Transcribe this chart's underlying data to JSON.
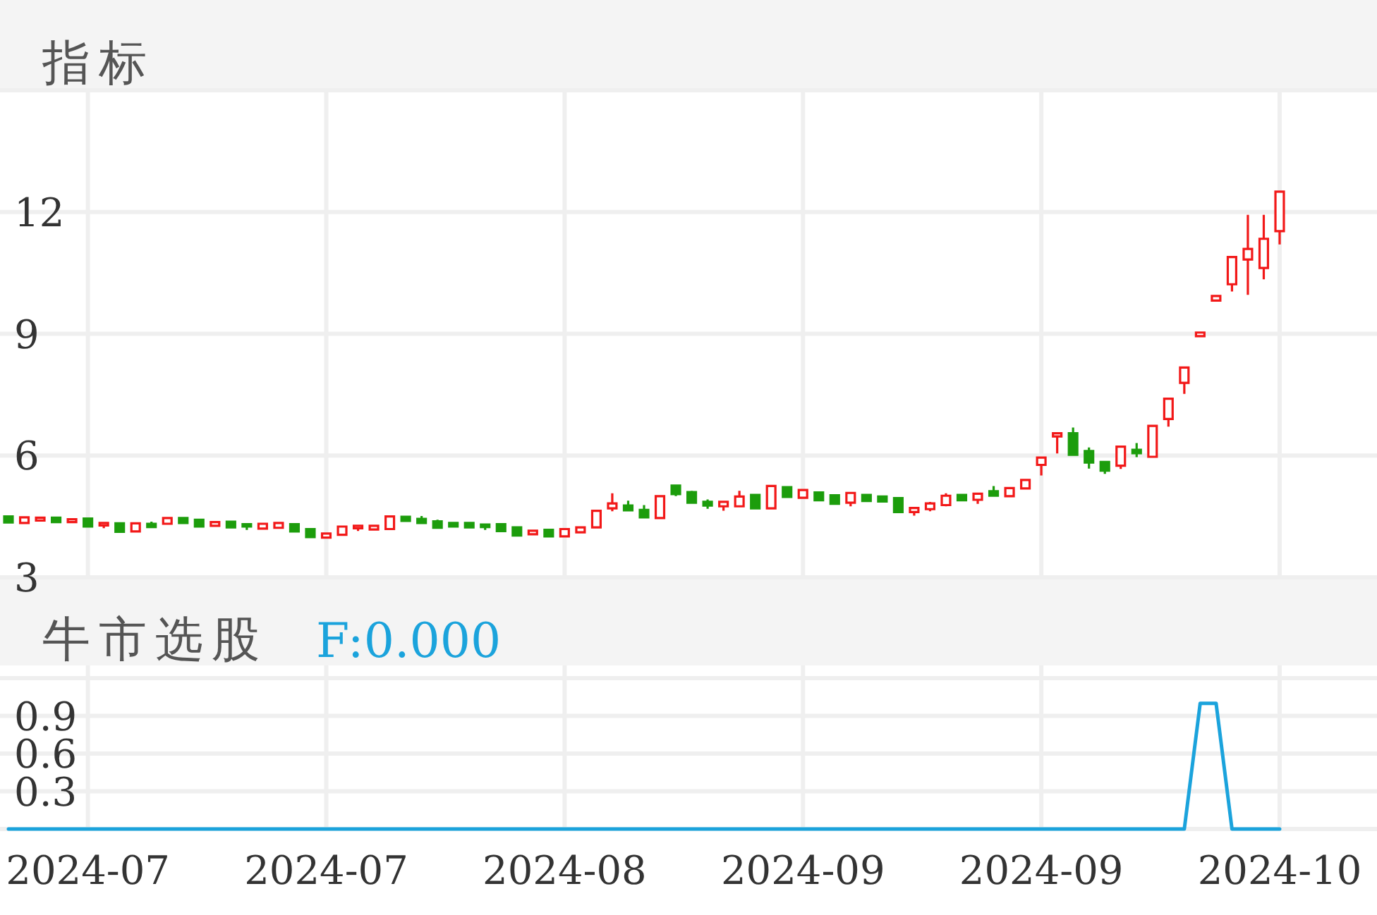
{
  "chart_data": [
    {
      "type": "candlestick",
      "title": "指标",
      "categories": [
        null,
        null,
        null,
        null,
        null,
        "2024-07",
        null,
        null,
        null,
        null,
        null,
        null,
        null,
        null,
        null,
        null,
        null,
        null,
        null,
        null,
        "2024-07",
        null,
        null,
        null,
        null,
        null,
        null,
        null,
        null,
        null,
        null,
        null,
        null,
        null,
        null,
        "2024-08",
        null,
        null,
        null,
        null,
        null,
        null,
        null,
        null,
        null,
        null,
        null,
        null,
        null,
        null,
        "2024-09",
        null,
        null,
        null,
        null,
        null,
        null,
        null,
        null,
        null,
        null,
        null,
        null,
        null,
        null,
        "2024-09",
        null,
        null,
        null,
        null,
        null,
        null,
        null,
        null,
        null,
        null,
        null,
        null,
        null,
        null,
        "2024-10"
      ],
      "ohlc": [
        [
          4.5,
          4.52,
          4.33,
          4.35
        ],
        [
          4.34,
          4.5,
          4.33,
          4.48
        ],
        [
          4.4,
          4.48,
          4.4,
          4.47
        ],
        [
          4.47,
          4.48,
          4.35,
          4.36
        ],
        [
          4.36,
          4.44,
          4.36,
          4.43
        ],
        [
          4.45,
          4.45,
          4.24,
          4.25
        ],
        [
          4.28,
          4.35,
          4.21,
          4.34
        ],
        [
          4.33,
          4.33,
          4.12,
          4.12
        ],
        [
          4.13,
          4.34,
          4.12,
          4.33
        ],
        [
          4.32,
          4.37,
          4.23,
          4.24
        ],
        [
          4.32,
          4.47,
          4.31,
          4.46
        ],
        [
          4.46,
          4.47,
          4.33,
          4.34
        ],
        [
          4.42,
          4.43,
          4.24,
          4.25
        ],
        [
          4.27,
          4.37,
          4.26,
          4.36
        ],
        [
          4.37,
          4.38,
          4.22,
          4.23
        ],
        [
          4.31,
          4.31,
          4.17,
          4.25
        ],
        [
          4.2,
          4.33,
          4.19,
          4.32
        ],
        [
          4.22,
          4.35,
          4.21,
          4.34
        ],
        [
          4.31,
          4.31,
          4.12,
          4.13
        ],
        [
          4.19,
          4.2,
          3.98,
          3.99
        ],
        [
          3.98,
          4.09,
          3.98,
          4.08
        ],
        [
          4.05,
          4.26,
          4.05,
          4.25
        ],
        [
          4.21,
          4.28,
          4.14,
          4.27
        ],
        [
          4.18,
          4.28,
          4.17,
          4.27
        ],
        [
          4.19,
          4.51,
          4.19,
          4.5
        ],
        [
          4.49,
          4.5,
          4.38,
          4.39
        ],
        [
          4.44,
          4.51,
          4.33,
          4.34
        ],
        [
          4.38,
          4.42,
          4.21,
          4.22
        ],
        [
          4.34,
          4.35,
          4.24,
          4.25
        ],
        [
          4.34,
          4.34,
          4.22,
          4.23
        ],
        [
          4.3,
          4.3,
          4.17,
          4.24
        ],
        [
          4.31,
          4.31,
          4.13,
          4.14
        ],
        [
          4.23,
          4.23,
          4.02,
          4.03
        ],
        [
          4.06,
          4.16,
          4.05,
          4.15
        ],
        [
          4.17,
          4.17,
          4.0,
          4.01
        ],
        [
          4.01,
          4.2,
          4.0,
          4.19
        ],
        [
          4.11,
          4.24,
          4.1,
          4.23
        ],
        [
          4.23,
          4.65,
          4.22,
          4.64
        ],
        [
          4.7,
          5.07,
          4.63,
          4.82
        ],
        [
          4.77,
          4.89,
          4.64,
          4.65
        ],
        [
          4.66,
          4.78,
          4.47,
          4.48
        ],
        [
          4.46,
          5.01,
          4.45,
          5.0
        ],
        [
          5.26,
          5.26,
          5.0,
          5.05
        ],
        [
          5.1,
          5.13,
          4.83,
          4.84
        ],
        [
          4.86,
          4.92,
          4.69,
          4.77
        ],
        [
          4.75,
          4.87,
          4.64,
          4.86
        ],
        [
          4.75,
          5.13,
          4.74,
          4.99
        ],
        [
          5.03,
          5.04,
          4.69,
          4.7
        ],
        [
          4.7,
          5.26,
          4.69,
          5.25
        ],
        [
          5.22,
          5.23,
          4.97,
          4.98
        ],
        [
          4.96,
          5.16,
          4.95,
          5.15
        ],
        [
          5.09,
          5.09,
          4.89,
          4.9
        ],
        [
          5.02,
          5.02,
          4.8,
          4.81
        ],
        [
          4.84,
          5.09,
          4.75,
          5.08
        ],
        [
          5.03,
          5.03,
          4.87,
          4.88
        ],
        [
          4.99,
          5.0,
          4.86,
          4.87
        ],
        [
          4.95,
          4.95,
          4.6,
          4.61
        ],
        [
          4.61,
          4.72,
          4.52,
          4.71
        ],
        [
          4.68,
          4.86,
          4.63,
          4.82
        ],
        [
          4.78,
          5.07,
          4.75,
          5.01
        ],
        [
          5.03,
          5.04,
          4.89,
          4.9
        ],
        [
          4.91,
          5.07,
          4.81,
          5.06
        ],
        [
          5.12,
          5.25,
          5.0,
          5.01
        ],
        [
          5.0,
          5.21,
          4.99,
          5.2
        ],
        [
          5.19,
          5.41,
          5.18,
          5.4
        ],
        [
          5.77,
          5.96,
          5.51,
          5.95
        ],
        [
          6.47,
          6.55,
          6.05,
          6.55
        ],
        [
          6.55,
          6.69,
          6.01,
          6.02
        ],
        [
          6.11,
          6.2,
          5.68,
          5.83
        ],
        [
          5.84,
          5.84,
          5.55,
          5.63
        ],
        [
          5.75,
          6.22,
          5.67,
          6.22
        ],
        [
          6.14,
          6.31,
          5.96,
          6.06
        ],
        [
          5.97,
          6.74,
          5.96,
          6.73
        ],
        [
          6.9,
          7.41,
          6.71,
          7.4
        ],
        [
          7.79,
          8.17,
          7.52,
          8.17
        ],
        [
          8.94,
          9.03,
          8.94,
          9.03
        ],
        [
          9.82,
          9.93,
          9.82,
          9.93
        ],
        [
          10.22,
          10.91,
          10.04,
          10.89
        ],
        [
          10.83,
          11.93,
          9.96,
          11.09
        ],
        [
          10.62,
          11.93,
          10.34,
          11.34
        ],
        [
          11.53,
          12.5,
          11.2,
          12.5
        ]
      ],
      "colors": [
        "#1c9d0c",
        "#f21818",
        "#f21818",
        "#1c9d0c",
        "#f21818",
        "#1c9d0c",
        "#f21818",
        "#1c9d0c",
        "#f21818",
        "#1c9d0c",
        "#f21818",
        "#1c9d0c",
        "#1c9d0c",
        "#f21818",
        "#1c9d0c",
        "#1c9d0c",
        "#f21818",
        "#f21818",
        "#1c9d0c",
        "#1c9d0c",
        "#f21818",
        "#f21818",
        "#f21818",
        "#f21818",
        "#f21818",
        "#1c9d0c",
        "#1c9d0c",
        "#1c9d0c",
        "#1c9d0c",
        "#1c9d0c",
        "#1c9d0c",
        "#1c9d0c",
        "#1c9d0c",
        "#f21818",
        "#1c9d0c",
        "#f21818",
        "#f21818",
        "#f21818",
        "#f21818",
        "#1c9d0c",
        "#1c9d0c",
        "#f21818",
        "#1c9d0c",
        "#1c9d0c",
        "#1c9d0c",
        "#f21818",
        "#f21818",
        "#1c9d0c",
        "#f21818",
        "#1c9d0c",
        "#f21818",
        "#1c9d0c",
        "#1c9d0c",
        "#f21818",
        "#1c9d0c",
        "#1c9d0c",
        "#1c9d0c",
        "#f21818",
        "#f21818",
        "#f21818",
        "#1c9d0c",
        "#f21818",
        "#1c9d0c",
        "#f21818",
        "#f21818",
        "#f21818",
        "#f21818",
        "#1c9d0c",
        "#1c9d0c",
        "#1c9d0c",
        "#f21818",
        "#1c9d0c",
        "#f21818",
        "#f21818",
        "#f21818",
        "#f21818",
        "#f21818",
        "#f21818",
        "#f21818",
        "#f21818",
        "#f21818"
      ],
      "ylim": [
        3,
        15
      ],
      "yticks": [
        3,
        6,
        9,
        12,
        {
          "value": 15,
          "label": null
        }
      ],
      "grid": true,
      "tick_labels": "y"
    },
    {
      "type": "line",
      "title": "牛市选股",
      "categories": [
        null,
        null,
        null,
        null,
        null,
        "2024-07",
        null,
        null,
        null,
        null,
        null,
        null,
        null,
        null,
        null,
        null,
        null,
        null,
        null,
        null,
        "2024-07",
        null,
        null,
        null,
        null,
        null,
        null,
        null,
        null,
        null,
        null,
        null,
        null,
        null,
        null,
        "2024-08",
        null,
        null,
        null,
        null,
        null,
        null,
        null,
        null,
        null,
        null,
        null,
        null,
        null,
        null,
        "2024-09",
        null,
        null,
        null,
        null,
        null,
        null,
        null,
        null,
        null,
        null,
        null,
        null,
        null,
        null,
        "2024-09",
        null,
        null,
        null,
        null,
        null,
        null,
        null,
        null,
        null,
        null,
        null,
        null,
        null,
        null,
        "2024-10"
      ],
      "series": [
        {
          "name": "F:0.000",
          "color": "#1ba3dc",
          "values": [
            0,
            0,
            0,
            0,
            0,
            0,
            0,
            0,
            0,
            0,
            0,
            0,
            0,
            0,
            0,
            0,
            0,
            0,
            0,
            0,
            0,
            0,
            0,
            0,
            0,
            0,
            0,
            0,
            0,
            0,
            0,
            0,
            0,
            0,
            0,
            0,
            0,
            0,
            0,
            0,
            0,
            0,
            0,
            0,
            0,
            0,
            0,
            0,
            0,
            0,
            0,
            0,
            0,
            0,
            0,
            0,
            0,
            0,
            0,
            0,
            0,
            0,
            0,
            0,
            0,
            0,
            0,
            0,
            0,
            0,
            0,
            0,
            0,
            0,
            0,
            1,
            1,
            0,
            0,
            0,
            0
          ]
        }
      ],
      "ylim": [
        0,
        1.2
      ],
      "yticks": [
        {
          "value": 0,
          "label": null
        },
        0.3,
        0.6,
        0.9,
        {
          "value": 1.2,
          "label": null
        }
      ],
      "grid": true,
      "legend": "top left"
    }
  ]
}
